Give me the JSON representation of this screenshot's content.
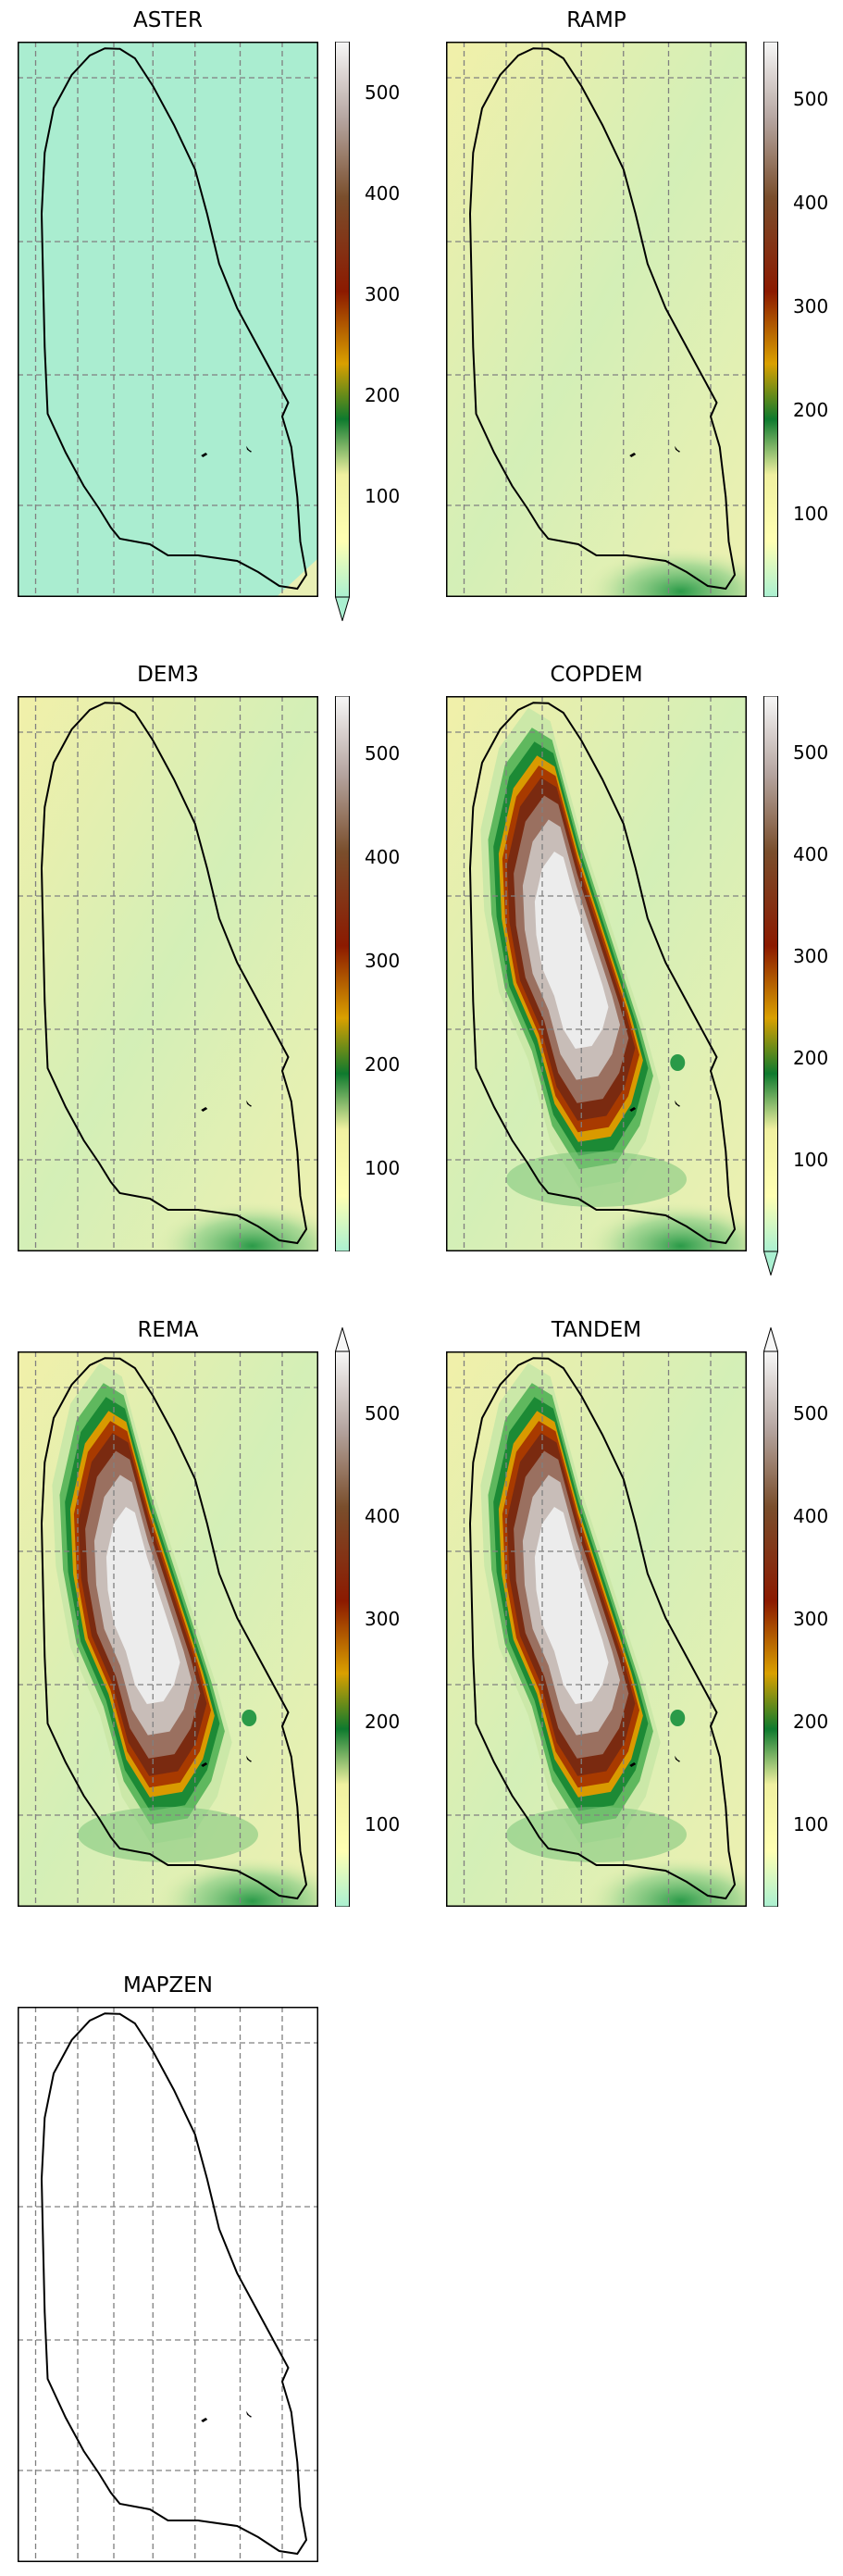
{
  "colors": {
    "colormap": [
      "#aaf0d1",
      "#ffffb3",
      "#f0f0a0",
      "#0e7a2e",
      "#d9a000",
      "#8b1a00",
      "#7a4e2c",
      "#b5a5a0",
      "#f7f7f7"
    ],
    "boundary": "#000000",
    "gridlines": "#808080"
  },
  "colorbar_ticks": [
    "100",
    "200",
    "300",
    "400",
    "500"
  ],
  "panels": [
    {
      "title": "ASTER",
      "colorbar": {
        "min": 0,
        "max": 550,
        "extend": "min"
      },
      "terrain": "flat"
    },
    {
      "title": "RAMP",
      "colorbar": {
        "min": 20,
        "max": 555,
        "extend": "neither"
      },
      "terrain": "low"
    },
    {
      "title": "DEM3",
      "colorbar": {
        "min": 20,
        "max": 555,
        "extend": "neither"
      },
      "terrain": "low-dem3"
    },
    {
      "title": "COPDEM",
      "colorbar": {
        "min": 10,
        "max": 555,
        "extend": "min"
      },
      "terrain": "ridge"
    },
    {
      "title": "REMA",
      "colorbar": {
        "min": 20,
        "max": 560,
        "extend": "max"
      },
      "terrain": "ridge"
    },
    {
      "title": "TANDEM",
      "colorbar": {
        "min": 20,
        "max": 560,
        "extend": "max"
      },
      "terrain": "ridge"
    },
    {
      "title": "MAPZEN",
      "colorbar": null,
      "terrain": "empty"
    }
  ]
}
